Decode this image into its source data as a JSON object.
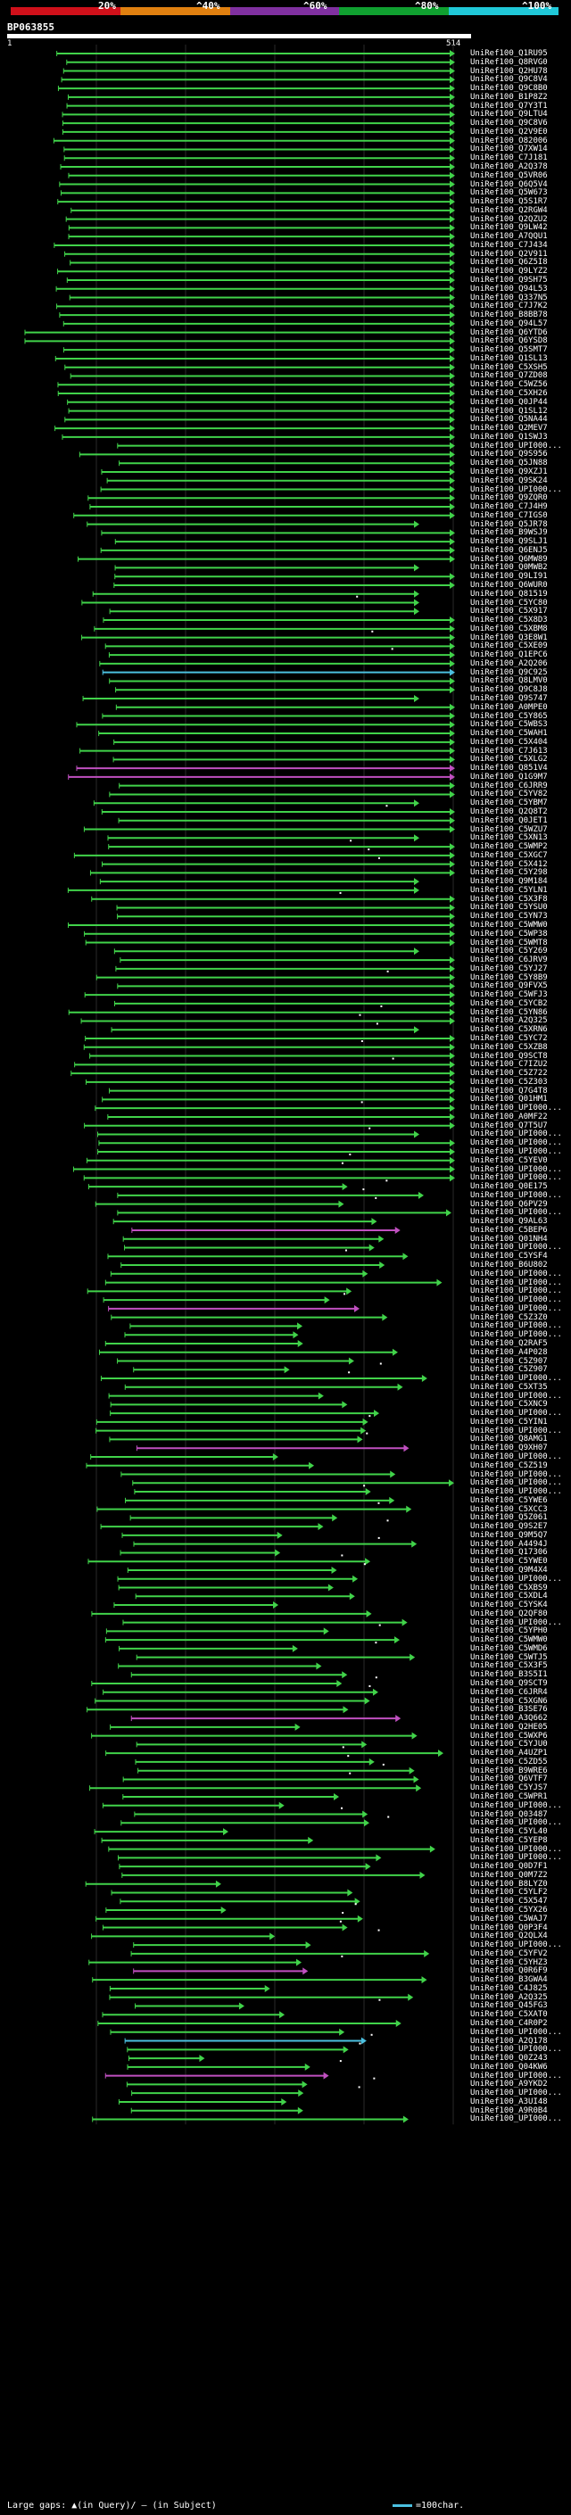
{
  "scale": {
    "labels": [
      "20%",
      "^40%",
      "^60%",
      "^80%",
      "^100%"
    ],
    "colors": [
      "#d0101a",
      "#e08010",
      "#8030a0",
      "#10a030",
      "#20c8d8"
    ]
  },
  "query": {
    "name": "BP063855",
    "start": "1",
    "end": "514"
  },
  "colors": {
    "green": "#41d34a",
    "magenta": "#c050c0",
    "cyan": "#4bc0e0",
    "grid": "#2a2a2a"
  },
  "hits": [
    "UniRef100_Q1RU95",
    "UniRef100_Q8RVG0",
    "UniRef100_Q2HU78",
    "UniRef100_Q9C8V4",
    "UniRef100_Q9C8B0",
    "UniRef100_B1P8Z2",
    "UniRef100_Q7Y3T1",
    "UniRef100_Q9LTU4",
    "UniRef100_Q9C8V6",
    "UniRef100_Q2V9E0",
    "UniRef100_O82006",
    "UniRef100_Q7XW14",
    "UniRef100_C7J181",
    "UniRef100_A2Q378",
    "UniRef100_Q5VR06",
    "UniRef100_Q6Q5V4",
    "UniRef100_Q5W673",
    "UniRef100_Q5S1R7",
    "UniRef100_Q2RGW4",
    "UniRef100_Q2QZU2",
    "UniRef100_Q9LW42",
    "UniRef100_A7QQU1",
    "UniRef100_C7J434",
    "UniRef100_Q2V911",
    "UniRef100_Q6Z5I8",
    "UniRef100_Q9LYZ2",
    "UniRef100_Q9SH75",
    "UniRef100_Q94L53",
    "UniRef100_Q337N5",
    "UniRef100_C7J7K2",
    "UniRef100_B8BB78",
    "UniRef100_Q94L57",
    "UniRef100_Q6YTD6",
    "UniRef100_Q6YSD8",
    "UniRef100_Q5SMT7",
    "UniRef100_Q1SL13",
    "UniRef100_C5XSH5",
    "UniRef100_Q7ZD08",
    "UniRef100_C5WZ56",
    "UniRef100_C5XH26",
    "UniRef100_Q0JP44",
    "UniRef100_Q1SL12",
    "UniRef100_Q5NA44",
    "UniRef100_Q2MEV7",
    "UniRef100_Q1SWJ3",
    "UniRef100_UPI000...",
    "UniRef100_Q9S956",
    "UniRef100_Q5JN88",
    "UniRef100_Q9XZJ1",
    "UniRef100_Q9SK24",
    "UniRef100_UPI000...",
    "UniRef100_Q9ZQR0",
    "UniRef100_C7J4H9",
    "UniRef100_C7IGS0",
    "UniRef100_Q5JR78",
    "UniRef100_B9WSJ9",
    "UniRef100_Q9SLJ1",
    "UniRef100_Q6ENJ5",
    "UniRef100_Q6MW89",
    "UniRef100_Q0MWB2",
    "UniRef100_Q9LI91",
    "UniRef100_Q6WUR0",
    "UniRef100_Q81519",
    "UniRef100_C5YC80",
    "UniRef100_C5X917",
    "UniRef100_C5X8D3",
    "UniRef100_C5XBM8",
    "UniRef100_Q3E8W1",
    "UniRef100_C5XE09",
    "UniRef100_Q1EPC6",
    "UniRef100_A2Q206",
    "UniRef100_Q9C925",
    "UniRef100_Q8LMV0",
    "UniRef100_Q9C8J8",
    "UniRef100_Q9S747",
    "UniRef100_A0MPE0",
    "UniRef100_C5Y865",
    "UniRef100_C5WBS3",
    "UniRef100_C5WAH1",
    "UniRef100_C5X404",
    "UniRef100_C7J613",
    "UniRef100_C5XLG2",
    "UniRef100_Q851V4",
    "UniRef100_Q1G9M7",
    "UniRef100_C6JRR9",
    "UniRef100_C5YV82",
    "UniRef100_C5YBM7",
    "UniRef100_Q2Q8T2",
    "UniRef100_Q0JET1",
    "UniRef100_C5WZU7",
    "UniRef100_C5XN13",
    "UniRef100_C5WMP2",
    "UniRef100_C5XGC7",
    "UniRef100_C5X412",
    "UniRef100_C5Y298",
    "UniRef100_Q9M184",
    "UniRef100_C5YLN1",
    "UniRef100_C5X3F8",
    "UniRef100_C5YSU0",
    "UniRef100_C5YN73",
    "UniRef100_C5WMW0",
    "UniRef100_C5WP38",
    "UniRef100_C5WMT8",
    "UniRef100_C5Y269",
    "UniRef100_C6JRV9",
    "UniRef100_C5YJ27",
    "UniRef100_C5Y8B9",
    "UniRef100_Q9FVX5",
    "UniRef100_C5WFJ3",
    "UniRef100_C5YCB2",
    "UniRef100_C5YN86",
    "UniRef100_A2Q325",
    "UniRef100_C5XRN6",
    "UniRef100_C5YC72",
    "UniRef100_C5XZB8",
    "UniRef100_Q9SCT8",
    "UniRef100_C7IZU2",
    "UniRef100_C5Z722",
    "UniRef100_C5Z303",
    "UniRef100_Q7G4T8",
    "UniRef100_Q01HM1",
    "UniRef100_UPI000...",
    "UniRef100_A0MF22",
    "UniRef100_Q7T5U7",
    "UniRef100_UPI000...",
    "UniRef100_UPI000...",
    "UniRef100_UPI000...",
    "UniRef100_C5YEV0",
    "UniRef100_UPI000...",
    "UniRef100_UPI000...",
    "UniRef100_Q0E175",
    "UniRef100_UPI000...",
    "UniRef100_Q6PV29",
    "UniRef100_UPI000...",
    "UniRef100_Q9AL63",
    "UniRef100_C5BEP6",
    "UniRef100_Q01NH4",
    "UniRef100_UPI000...",
    "UniRef100_C5YSF4",
    "UniRef100_B6U802",
    "UniRef100_UPI000...",
    "UniRef100_UPI000...",
    "UniRef100_UPI000...",
    "UniRef100_UPI000...",
    "UniRef100_UPI000...",
    "UniRef100_C5Z3Z0",
    "UniRef100_UPI000...",
    "UniRef100_UPI000...",
    "UniRef100_Q2RAF5",
    "UniRef100_A4P028",
    "UniRef100_C5Z907",
    "UniRef100_C5Z907",
    "UniRef100_UPI000...",
    "UniRef100_C5XT35",
    "UniRef100_UPI000...",
    "UniRef100_C5XNC9",
    "UniRef100_UPI000...",
    "UniRef100_C5YIN1",
    "UniRef100_UPI000...",
    "UniRef100_Q8AMG1",
    "UniRef100_Q9XH07",
    "UniRef100_UPI000...",
    "UniRef100_C5Z519",
    "UniRef100_UPI000...",
    "UniRef100_UPI000...",
    "UniRef100_UPI000...",
    "UniRef100_C5YWE6",
    "UniRef100_C5XCC3",
    "UniRef100_Q5Z061",
    "UniRef100_Q9S2E7",
    "UniRef100_Q9M5Q7",
    "UniRef100_A4494J",
    "UniRef100_Q17306",
    "UniRef100_C5YWE0",
    "UniRef100_Q9M4X4",
    "UniRef100_UPI000...",
    "UniRef100_C5XBS9",
    "UniRef100_C5XDL4",
    "UniRef100_C5YSK4",
    "UniRef100_Q2QF80",
    "UniRef100_UPI000...",
    "UniRef100_C5YPH0",
    "UniRef100_C5WMW0",
    "UniRef100_C5WMD6",
    "UniRef100_C5WTJ5",
    "UniRef100_C5X3F5",
    "UniRef100_B3S5I1",
    "UniRef100_Q9SCT9",
    "UniRef100_C6JRR4",
    "UniRef100_C5XGN6",
    "UniRef100_B3SE76",
    "UniRef100_A3Q662",
    "UniRef100_Q2HE05",
    "UniRef100_C5WXP6",
    "UniRef100_C5YJU0",
    "UniRef100_A4UZP1",
    "UniRef100_C5ZD55",
    "UniRef100_B9WRE6",
    "UniRef100_Q6VTF7",
    "UniRef100_C5YJS7",
    "UniRef100_C5WPR1",
    "UniRef100_UPI000...",
    "UniRef100_Q03487",
    "UniRef100_UPI000...",
    "UniRef100_C5YL40",
    "UniRef100_C5YEP8",
    "UniRef100_UPI000...",
    "UniRef100_UPI000...",
    "UniRef100_Q0D7F1",
    "UniRef100_Q0M7Z2",
    "UniRef100_B8LYZ0",
    "UniRef100_C5YLF2",
    "UniRef100_C5X547",
    "UniRef100_C5YX26",
    "UniRef100_C5WAJ7",
    "UniRef100_Q0P3F4",
    "UniRef100_Q2QLX4",
    "UniRef100_UPI000...",
    "UniRef100_C5YFV2",
    "UniRef100_C5YHZ3",
    "UniRef100_Q0R6F9",
    "UniRef100_B3GWA4",
    "UniRef100_C4J825",
    "UniRef100_A2Q325",
    "UniRef100_Q45FG3",
    "UniRef100_C5XAT0",
    "UniRef100_C4R0P2",
    "UniRef100_UPI000...",
    "UniRef100_A2Q178",
    "UniRef100_UPI000...",
    "UniRef100_Q0Z243",
    "UniRef100_Q04KW6",
    "UniRef100_UPI000...",
    "UniRef100_A9YKD2",
    "UniRef100_UPI000...",
    "UniRef100_A3UI48",
    "UniRef100_A9R0B4",
    "UniRef100_UPI000..."
  ],
  "footer": {
    "large_gaps": "Large gaps: ▲(in Query)/ — (in Subject)",
    "legend": "=100char."
  }
}
